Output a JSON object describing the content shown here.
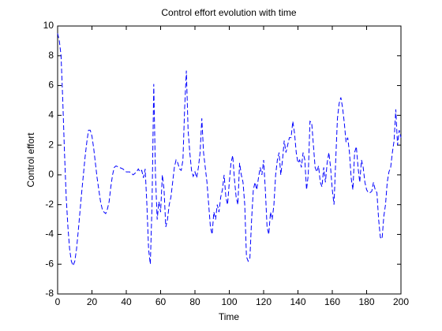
{
  "chart_data": {
    "type": "line",
    "title": "Control effort evolution with time",
    "xlabel": "Time",
    "ylabel": "Control effort",
    "color": "#0000ff",
    "line_style": "dashed",
    "xlim": [
      0,
      200
    ],
    "xticks": [
      0,
      20,
      40,
      60,
      80,
      100,
      120,
      140,
      160,
      180,
      200
    ],
    "ylim": [
      -8,
      10
    ],
    "yticks": [
      -8,
      -6,
      -4,
      -2,
      0,
      2,
      4,
      6,
      8,
      10
    ],
    "x": [
      0,
      1,
      2,
      3,
      4,
      5,
      6,
      7,
      8,
      9,
      10,
      11,
      12,
      13,
      14,
      15,
      16,
      17,
      18,
      19,
      20,
      21,
      22,
      23,
      24,
      25,
      26,
      27,
      28,
      29,
      30,
      31,
      32,
      33,
      34,
      35,
      36,
      37,
      38,
      39,
      40,
      41,
      42,
      43,
      44,
      45,
      46,
      47,
      48,
      49,
      50,
      51,
      52,
      53,
      54,
      55,
      56,
      57,
      58,
      59,
      60,
      61,
      62,
      63,
      64,
      65,
      66,
      67,
      68,
      69,
      70,
      71,
      72,
      73,
      74,
      75,
      76,
      77,
      78,
      79,
      80,
      81,
      82,
      83,
      84,
      85,
      86,
      87,
      88,
      89,
      90,
      91,
      92,
      93,
      94,
      95,
      96,
      97,
      98,
      99,
      100,
      101,
      102,
      103,
      104,
      105,
      106,
      107,
      108,
      109,
      110,
      111,
      112,
      113,
      114,
      115,
      116,
      117,
      118,
      119,
      120,
      121,
      122,
      123,
      124,
      125,
      126,
      127,
      128,
      129,
      130,
      131,
      132,
      133,
      134,
      135,
      136,
      137,
      138,
      139,
      140,
      141,
      142,
      143,
      144,
      145,
      146,
      147,
      148,
      149,
      150,
      151,
      152,
      153,
      154,
      155,
      156,
      157,
      158,
      159,
      160,
      161,
      162,
      163,
      164,
      165,
      166,
      167,
      168,
      169,
      170,
      171,
      172,
      173,
      174,
      175,
      176,
      177,
      178,
      179,
      180,
      181,
      182,
      183,
      184,
      185,
      186,
      187,
      188,
      189,
      190,
      191,
      192,
      193,
      194,
      195,
      196,
      197,
      198,
      199,
      200
    ],
    "values": [
      9.5,
      9,
      8,
      5,
      1.5,
      -1.5,
      -3.5,
      -5,
      -5.8,
      -6.1,
      -5.8,
      -5,
      -3.8,
      -2.5,
      -1.2,
      0,
      1.2,
      2.2,
      3,
      3,
      2.6,
      1.8,
      0.8,
      -0.2,
      -1,
      -1.8,
      -2.3,
      -2.5,
      -2.6,
      -2.3,
      -1.8,
      -0.8,
      0,
      0.5,
      0.6,
      0.55,
      0.5,
      0.45,
      0.4,
      0.3,
      0.2,
      0.2,
      0.2,
      0.1,
      0,
      0.1,
      0.2,
      0.4,
      0.2,
      0.3,
      -0.2,
      0.4,
      -2,
      -5,
      -6,
      -2,
      6.1,
      0,
      -3,
      -1.8,
      -2.5,
      0,
      -1,
      -3.5,
      -3,
      -2,
      -1.5,
      -0.5,
      0.5,
      1,
      0.8,
      0.4,
      0.3,
      1,
      4.5,
      7,
      3,
      1.5,
      0.3,
      -0.1,
      0.2,
      -0.2,
      0.5,
      1.5,
      3.8,
      1.5,
      0.5,
      -0.5,
      -2,
      -3.5,
      -4,
      -2.5,
      -3,
      -2,
      -2.5,
      -1.5,
      -1,
      0,
      -1.5,
      -2,
      -0.5,
      0.8,
      1.3,
      -0.3,
      -1.5,
      -2,
      0.8,
      0,
      -0.5,
      -2,
      -5.5,
      -5.8,
      -5.6,
      -3,
      -1,
      -0.5,
      -1,
      -0.2,
      0.5,
      0,
      1,
      -1,
      -3.5,
      -4,
      -2.5,
      -3,
      -2,
      0,
      1,
      1.5,
      0,
      1,
      2.3,
      1.5,
      2,
      2.5,
      2.5,
      3.6,
      2.8,
      1.5,
      0.8,
      1,
      0.5,
      1.5,
      1,
      -1,
      0,
      3.6,
      3.5,
      2,
      0.5,
      0.2,
      0.6,
      -0.5,
      -0.8,
      0.5,
      -0.5,
      0.8,
      1.5,
      0.5,
      -1,
      -2,
      1,
      3.8,
      4.8,
      5.2,
      4.5,
      3.5,
      2.2,
      2.5,
      1.5,
      -0.2,
      -1,
      1.5,
      1.9,
      0.5,
      -0.5,
      1,
      0.5,
      -0.5,
      -1,
      -1.2,
      -1.2,
      -1.1,
      -0.5,
      -1,
      -1.2,
      -3,
      -4.2,
      -4.3,
      -2.8,
      -2,
      -0.5,
      0.2,
      0.5,
      1.5,
      2.3,
      4.4,
      2,
      3,
      2.5
    ]
  }
}
